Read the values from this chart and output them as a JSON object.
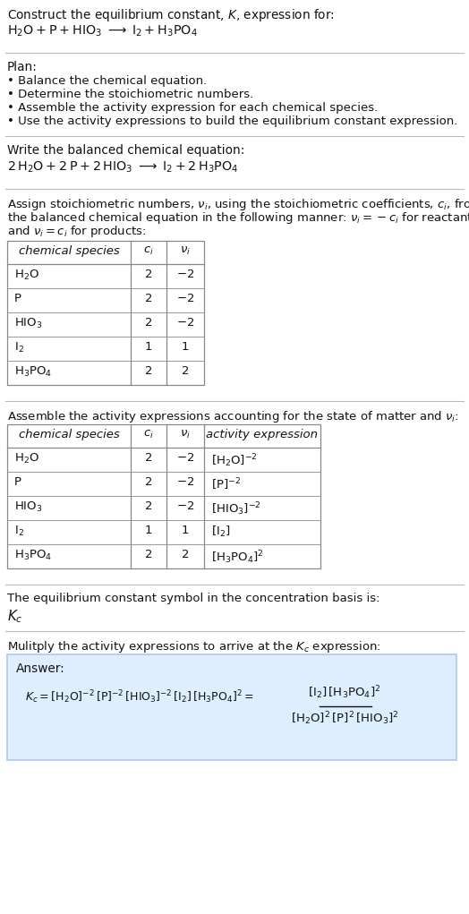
{
  "bg_color": "#ffffff",
  "table_border_color": "#888888",
  "answer_box_facecolor": "#ddeeff",
  "answer_box_edgecolor": "#aaccee",
  "text_color": "#111111",
  "sep_color": "#bbbbbb",
  "fs_body": 9.8,
  "fs_table": 9.5,
  "fs_math": 10.5,
  "section1": {
    "line1": "Construct the equilibrium constant, $K$, expression for:",
    "line2": "$\\mathrm{H_2O + P + HIO_3 \\;\\longrightarrow\\; I_2 + H_3PO_4}$"
  },
  "section2": {
    "header": "Plan:",
    "items": [
      "• Balance the chemical equation.",
      "• Determine the stoichiometric numbers.",
      "• Assemble the activity expression for each chemical species.",
      "• Use the activity expressions to build the equilibrium constant expression."
    ]
  },
  "section3": {
    "header": "Write the balanced chemical equation:",
    "eq": "$\\mathrm{2\\,H_2O + 2\\,P + 2\\,HIO_3 \\;\\longrightarrow\\; I_2 + 2\\,H_3PO_4}$"
  },
  "section4": {
    "header_parts": [
      "Assign stoichiometric numbers, $\\nu_i$, using the stoichiometric coefficients, $c_i$, from",
      "the balanced chemical equation in the following manner: $\\nu_i = -c_i$ for reactants",
      "and $\\nu_i = c_i$ for products:"
    ],
    "col_headers": [
      "chemical species",
      "$c_i$",
      "$\\nu_i$"
    ],
    "rows": [
      [
        "$\\mathrm{H_2O}$",
        "2",
        "$-2$"
      ],
      [
        "P",
        "2",
        "$-2$"
      ],
      [
        "$\\mathrm{HIO_3}$",
        "2",
        "$-2$"
      ],
      [
        "$\\mathrm{I_2}$",
        "1",
        "1"
      ],
      [
        "$\\mathrm{H_3PO_4}$",
        "2",
        "2"
      ]
    ]
  },
  "section5": {
    "header": "Assemble the activity expressions accounting for the state of matter and $\\nu_i$:",
    "col_headers": [
      "chemical species",
      "$c_i$",
      "$\\nu_i$",
      "activity expression"
    ],
    "rows": [
      [
        "$\\mathrm{H_2O}$",
        "2",
        "$-2$",
        "$[\\mathrm{H_2O}]^{-2}$"
      ],
      [
        "P",
        "2",
        "$-2$",
        "$[\\mathrm{P}]^{-2}$"
      ],
      [
        "$\\mathrm{HIO_3}$",
        "2",
        "$-2$",
        "$[\\mathrm{HIO_3}]^{-2}$"
      ],
      [
        "$\\mathrm{I_2}$",
        "1",
        "1",
        "$[\\mathrm{I_2}]$"
      ],
      [
        "$\\mathrm{H_3PO_4}$",
        "2",
        "2",
        "$[\\mathrm{H_3PO_4}]^2$"
      ]
    ]
  },
  "section6": {
    "header": "The equilibrium constant symbol in the concentration basis is:",
    "symbol": "$K_c$"
  },
  "section7": {
    "header": "Mulitply the activity expressions to arrive at the $K_c$ expression:",
    "answer_label": "Answer:",
    "eq_left": "$K_c = [\\mathrm{H_2O}]^{-2}\\,[\\mathrm{P}]^{-2}\\,[\\mathrm{HIO_3}]^{-2}\\,[\\mathrm{I_2}]\\,[\\mathrm{H_3PO_4}]^2 =$",
    "frac_num": "$[\\mathrm{I_2}]\\,[\\mathrm{H_3PO_4}]^2$",
    "frac_den": "$[\\mathrm{H_2O}]^2\\,[\\mathrm{P}]^2\\,[\\mathrm{HIO_3}]^2$"
  }
}
